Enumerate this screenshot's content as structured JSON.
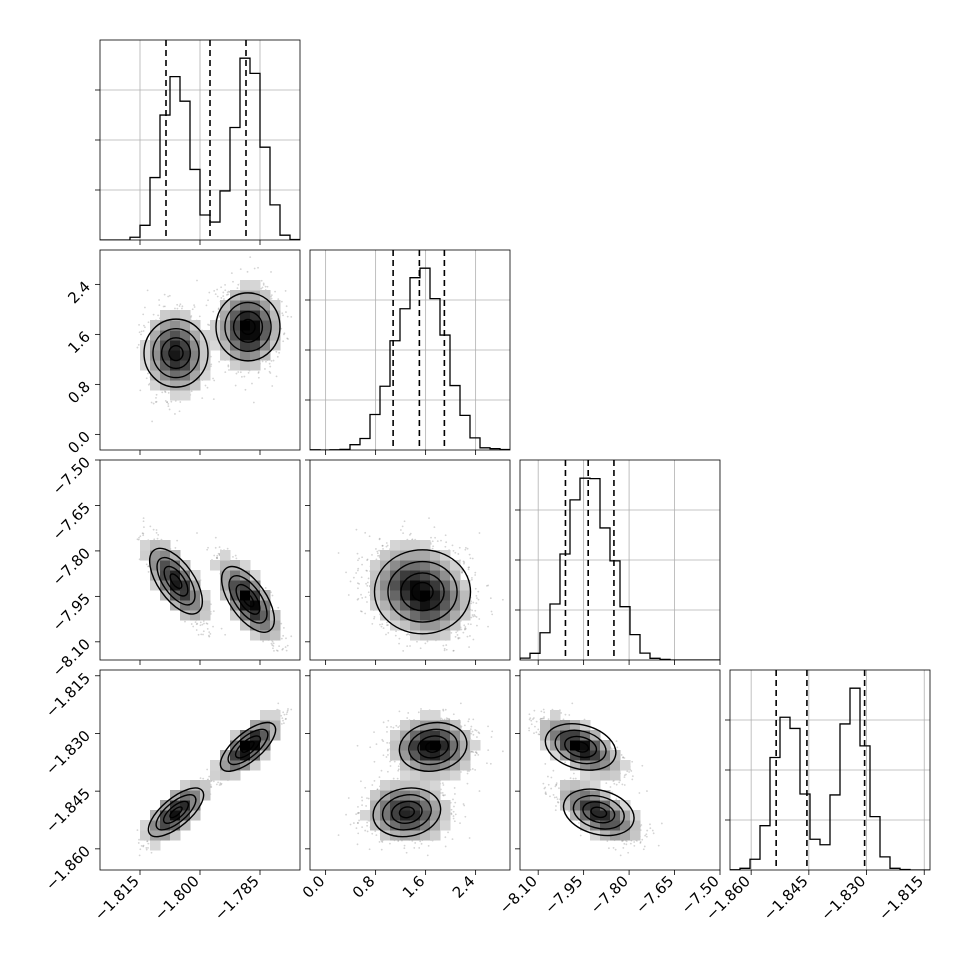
{
  "chart_data": {
    "type": "corner",
    "title": "",
    "parameters": [
      {
        "range": [
          -1.825,
          -1.775
        ],
        "ticks": [
          -1.815,
          -1.8,
          -1.785
        ],
        "tick_labels": [
          "−1.815",
          "−1.800",
          "−1.785"
        ],
        "quantiles": [
          -1.8085,
          -1.7975,
          -1.7885
        ],
        "modes": [
          {
            "mean": -1.806,
            "sd": 0.0035,
            "w": 0.48
          },
          {
            "mean": -1.788,
            "sd": 0.0035,
            "w": 0.52
          }
        ]
      },
      {
        "range": [
          -0.25,
          2.95
        ],
        "ticks": [
          0.0,
          0.8,
          1.6,
          2.4
        ],
        "tick_labels": [
          "0.0",
          "0.8",
          "1.6",
          "2.4"
        ],
        "quantiles": [
          1.08,
          1.5,
          1.9
        ],
        "modes": [
          {
            "mean": 1.5,
            "sd": 0.4,
            "w": 1.0
          }
        ]
      },
      {
        "range": [
          -8.16,
          -7.5
        ],
        "ticks": [
          -8.1,
          -7.95,
          -7.8,
          -7.65,
          -7.5
        ],
        "tick_labels": [
          "−8.10",
          "−7.95",
          "−7.80",
          "−7.65",
          "−7.50"
        ],
        "quantiles": [
          -8.01,
          -7.935,
          -7.85
        ],
        "modes": [
          {
            "mean": -7.935,
            "sd": 0.065,
            "w": 1.0
          }
        ]
      },
      {
        "range": [
          -1.8655,
          -1.8135
        ],
        "ticks": [
          -1.86,
          -1.845,
          -1.83,
          -1.815
        ],
        "tick_labels": [
          "−1.860",
          "−1.845",
          "−1.830",
          "−1.815"
        ],
        "quantiles": [
          -1.8535,
          -1.8455,
          -1.8305
        ],
        "modes": [
          {
            "mean": -1.8505,
            "sd": 0.0035,
            "w": 0.5
          },
          {
            "mean": -1.8335,
            "sd": 0.0035,
            "w": 0.5
          }
        ]
      }
    ],
    "histogram_ylabels": "none",
    "grid": true,
    "contours": 4,
    "scatter_points": true
  }
}
